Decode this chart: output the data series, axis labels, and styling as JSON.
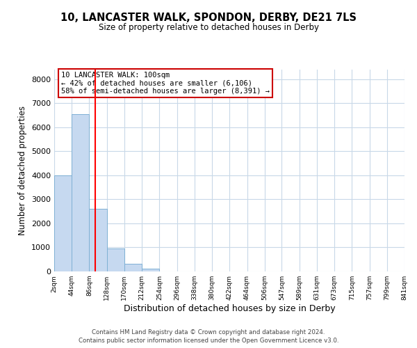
{
  "title": "10, LANCASTER WALK, SPONDON, DERBY, DE21 7LS",
  "subtitle": "Size of property relative to detached houses in Derby",
  "xlabel": "Distribution of detached houses by size in Derby",
  "ylabel": "Number of detached properties",
  "bar_values": [
    4000,
    6550,
    2600,
    950,
    330,
    130,
    0,
    0,
    0,
    0,
    0,
    0,
    0,
    0,
    0,
    0,
    0,
    0,
    0,
    0
  ],
  "bin_edges": [
    2,
    44,
    86,
    128,
    170,
    212,
    254,
    296,
    338,
    380,
    422,
    464,
    506,
    547,
    589,
    631,
    673,
    715,
    757,
    799,
    841
  ],
  "tick_labels": [
    "2sqm",
    "44sqm",
    "86sqm",
    "128sqm",
    "170sqm",
    "212sqm",
    "254sqm",
    "296sqm",
    "338sqm",
    "380sqm",
    "422sqm",
    "464sqm",
    "506sqm",
    "547sqm",
    "589sqm",
    "631sqm",
    "673sqm",
    "715sqm",
    "757sqm",
    "799sqm",
    "841sqm"
  ],
  "bar_color": "#c6d9f0",
  "bar_edge_color": "#7eb0d4",
  "red_line_x": 100,
  "ylim": [
    0,
    8400
  ],
  "yticks": [
    0,
    1000,
    2000,
    3000,
    4000,
    5000,
    6000,
    7000,
    8000
  ],
  "annotation_title": "10 LANCASTER WALK: 100sqm",
  "annotation_line1": "← 42% of detached houses are smaller (6,106)",
  "annotation_line2": "58% of semi-detached houses are larger (8,391) →",
  "annotation_box_color": "#ffffff",
  "annotation_box_edge": "#cc0000",
  "footer1": "Contains HM Land Registry data © Crown copyright and database right 2024.",
  "footer2": "Contains public sector information licensed under the Open Government Licence v3.0.",
  "background_color": "#ffffff",
  "grid_color": "#c8d8e8"
}
